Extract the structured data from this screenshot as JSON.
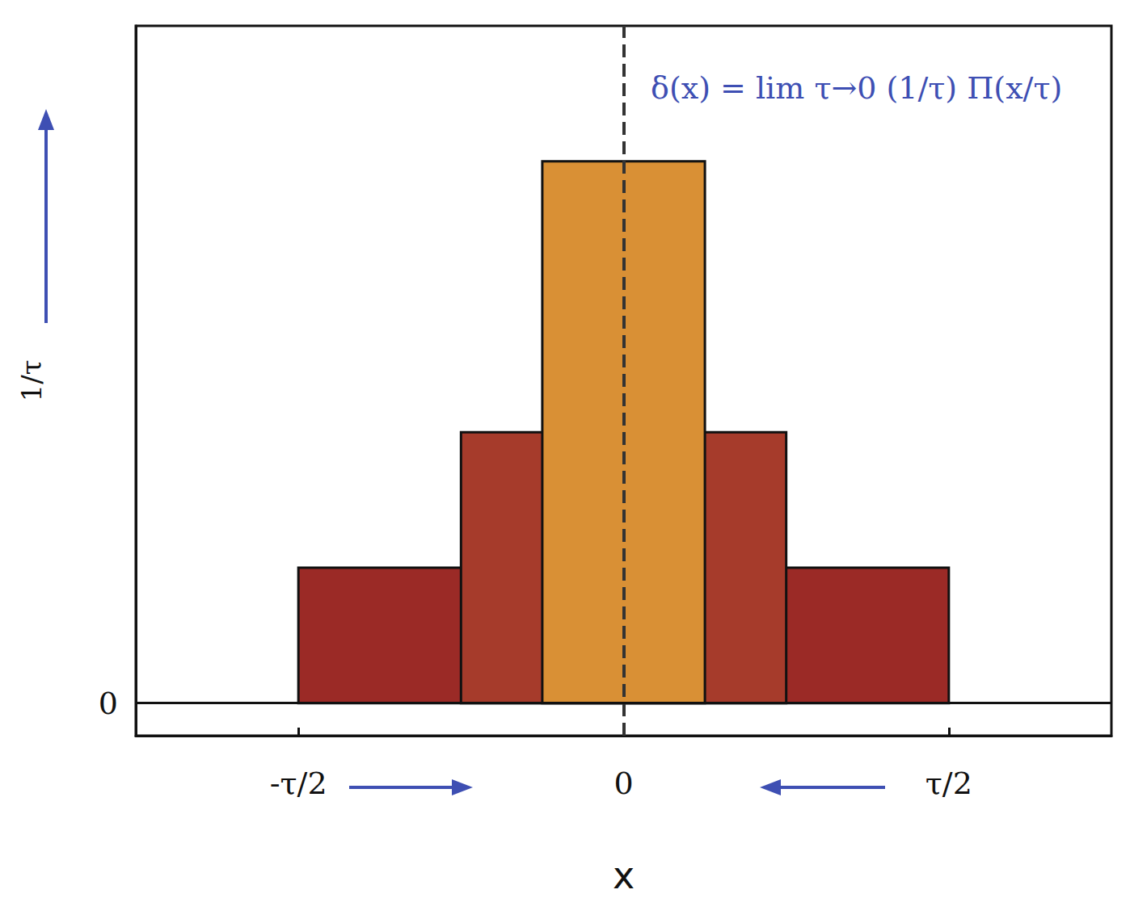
{
  "chart_data": {
    "type": "rectangle",
    "x_label": "x",
    "y_label": "1/τ",
    "annotation": "δ(x) = lim τ→0 (1/τ) Π(x/τ)",
    "xlim": [
      -0.75,
      0.75
    ],
    "ylim": [
      -0.24,
      5
    ],
    "xticks": [
      {
        "value": -0.5,
        "label": "-τ/2"
      },
      0,
      {
        "value": 0.5,
        "label": "τ/2"
      }
    ],
    "yticks": [
      0
    ],
    "grid": false,
    "baseline": 0,
    "reference_line": {
      "x": 0,
      "line_style": "dashed"
    },
    "rectangles": [
      {
        "x0": -0.5,
        "x1": 0.5,
        "height": 1,
        "color": "#9b2a26"
      },
      {
        "x0": -0.25,
        "x1": 0.25,
        "height": 2,
        "color": "#a63b2b"
      },
      {
        "x0": -0.125,
        "x1": 0.125,
        "height": 4,
        "color": "#d99035"
      }
    ]
  }
}
